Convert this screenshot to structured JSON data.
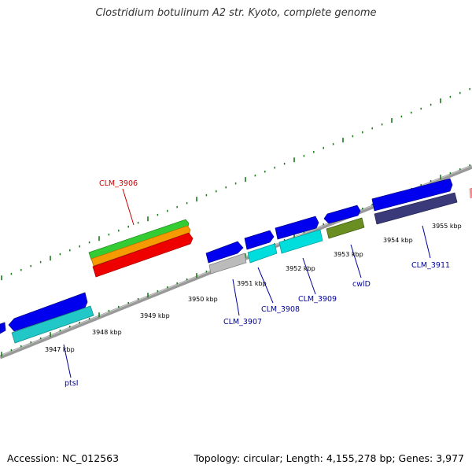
{
  "title": "Clostridium botulinum A2 str. Kyoto, complete genome",
  "footer": {
    "accession": "Accession: NC_012563",
    "summary": "Topology: circular; Length: 4,155,278 bp; Genes: 3,977"
  },
  "tick_labels": [
    "3947 kbp",
    "3948 kbp",
    "3949 kbp",
    "3950 kbp",
    "3951 kbp",
    "3952 kbp",
    "3953 kbp",
    "3954 kbp",
    "3955 kbp"
  ],
  "gene_labels": [
    {
      "text": "CLM_3906",
      "color": "#cc0000"
    },
    {
      "text": "ptsI",
      "color": "#000099"
    },
    {
      "text": "CLM_3907",
      "color": "#000099"
    },
    {
      "text": "CLM_3908",
      "color": "#000099"
    },
    {
      "text": "CLM_3909",
      "color": "#000099"
    },
    {
      "text": "cwlD",
      "color": "#000099"
    },
    {
      "text": "CLM_3911",
      "color": "#000099"
    }
  ],
  "colors": {
    "backbone": "#888888",
    "ticks": "#1a7a1a",
    "cds": "#0000ee",
    "cyan": "#00dddd",
    "teal": "#22c8c8",
    "olive": "#6b8e23",
    "navy": "#3a3a7a",
    "green": "#33cc33",
    "orange": "#f59a00",
    "red": "#ee0000",
    "gray": "#bbbbbb"
  }
}
